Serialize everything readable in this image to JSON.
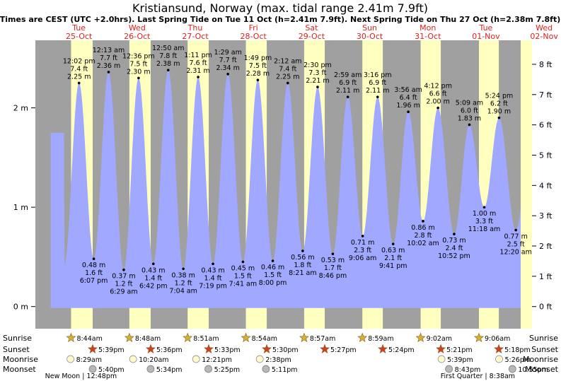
{
  "title": "Kristiansund, Norway (max. tidal range 2.41m 7.9ft)",
  "subtitle": "Times are CEST (UTC +2.0hrs). Last Spring Tide on Tue 11 Oct (h=2.41m 7.9ft). Next Spring Tide on Thu 27 Oct (h=2.38m 7.8ft)",
  "colors": {
    "night": "#a0a0a0",
    "day": "#ffffc0",
    "tide": "#a0a8ff",
    "day_label": "#e0201a",
    "sun_icon": "#d8b030",
    "sunset_icon": "#d04020",
    "moon_rise": "#fffacd",
    "moon_set": "#b8b8b8"
  },
  "chart_data": {
    "type": "area",
    "x_unit": "hours since 00:00 Tue 25-Oct (CEST)",
    "xlim": [
      -6,
      199
    ],
    "y_left": {
      "unit": "m",
      "ticks": [
        0,
        1,
        2
      ],
      "tick_labels": [
        "0 m",
        "1 m",
        "2 m"
      ]
    },
    "y_right": {
      "unit": "ft",
      "ticks": [
        0,
        1,
        2,
        3,
        4,
        5,
        6,
        7,
        8
      ],
      "tick_labels": [
        "0 ft",
        "1 ft",
        "2 ft",
        "3 ft",
        "4 ft",
        "5 ft",
        "6 ft",
        "7 ft",
        "8 ft"
      ]
    },
    "ylim_m": [
      -0.18,
      2.68
    ],
    "days": [
      {
        "dow": "Tue",
        "date": "25-Oct"
      },
      {
        "dow": "Wed",
        "date": "26-Oct"
      },
      {
        "dow": "Thu",
        "date": "27-Oct"
      },
      {
        "dow": "Fri",
        "date": "28-Oct"
      },
      {
        "dow": "Sat",
        "date": "29-Oct"
      },
      {
        "dow": "Sun",
        "date": "30-Oct"
      },
      {
        "dow": "Mon",
        "date": "31-Oct"
      },
      {
        "dow": "Tue",
        "date": "01-Nov"
      },
      {
        "dow": "Wed",
        "date": "02-Nov"
      }
    ],
    "extremes": [
      {
        "type": "high",
        "t": 12.03,
        "time": "12:02 pm",
        "ft": "7.4 ft",
        "m": "2.25 m",
        "h": 2.25
      },
      {
        "type": "low",
        "t": 18.12,
        "time": "6:07 pm",
        "ft": "1.6 ft",
        "m": "0.48 m",
        "h": 0.48
      },
      {
        "type": "high",
        "t": 24.22,
        "time": "12:13 am",
        "ft": "7.7 ft",
        "m": "2.36 m",
        "h": 2.36
      },
      {
        "type": "low",
        "t": 30.48,
        "time": "6:29 am",
        "ft": "1.2 ft",
        "m": "0.37 m",
        "h": 0.37
      },
      {
        "type": "high",
        "t": 36.6,
        "time": "12:36 pm",
        "ft": "7.5 ft",
        "m": "2.30 m",
        "h": 2.3
      },
      {
        "type": "low",
        "t": 42.7,
        "time": "6:42 pm",
        "ft": "1.4 ft",
        "m": "0.43 m",
        "h": 0.43
      },
      {
        "type": "high",
        "t": 48.83,
        "time": "12:50 am",
        "ft": "7.8 ft",
        "m": "2.38 m",
        "h": 2.38
      },
      {
        "type": "low",
        "t": 55.07,
        "time": "7:04 am",
        "ft": "1.2 ft",
        "m": "0.38 m",
        "h": 0.38
      },
      {
        "type": "high",
        "t": 61.18,
        "time": "1:11 pm",
        "ft": "7.6 ft",
        "m": "2.31 m",
        "h": 2.31
      },
      {
        "type": "low",
        "t": 67.32,
        "time": "7:19 pm",
        "ft": "1.4 ft",
        "m": "0.43 m",
        "h": 0.43
      },
      {
        "type": "high",
        "t": 73.48,
        "time": "1:29 am",
        "ft": "7.7 ft",
        "m": "2.34 m",
        "h": 2.34
      },
      {
        "type": "low",
        "t": 79.68,
        "time": "7:41 am",
        "ft": "1.5 ft",
        "m": "0.45 m",
        "h": 0.45
      },
      {
        "type": "high",
        "t": 85.82,
        "time": "1:49 pm",
        "ft": "7.5 ft",
        "m": "2.28 m",
        "h": 2.28
      },
      {
        "type": "low",
        "t": 92.0,
        "time": "8:00 pm",
        "ft": "1.5 ft",
        "m": "0.46 m",
        "h": 0.46
      },
      {
        "type": "high",
        "t": 98.2,
        "time": "2:12 am",
        "ft": "7.4 ft",
        "m": "2.25 m",
        "h": 2.25
      },
      {
        "type": "low",
        "t": 104.35,
        "time": "8:21 am",
        "ft": "1.8 ft",
        "m": "0.56 m",
        "h": 0.56
      },
      {
        "type": "high",
        "t": 110.5,
        "time": "2:30 pm",
        "ft": "7.3 ft",
        "m": "2.21 m",
        "h": 2.21
      },
      {
        "type": "low",
        "t": 116.77,
        "time": "8:46 pm",
        "ft": "1.7 ft",
        "m": "0.53 m",
        "h": 0.53
      },
      {
        "type": "high",
        "t": 122.98,
        "time": "2:59 am",
        "ft": "6.9 ft",
        "m": "2.11 m",
        "h": 2.11
      },
      {
        "type": "low",
        "t": 129.1,
        "time": "9:06 am",
        "ft": "2.3 ft",
        "m": "0.71 m",
        "h": 0.71
      },
      {
        "type": "high",
        "t": 135.27,
        "time": "3:16 pm",
        "ft": "6.9 ft",
        "m": "2.11 m",
        "h": 2.11
      },
      {
        "type": "low",
        "t": 141.68,
        "time": "9:41 pm",
        "ft": "2.1 ft",
        "m": "0.63 m",
        "h": 0.63
      },
      {
        "type": "high",
        "t": 147.93,
        "time": "3:56 am",
        "ft": "6.4 ft",
        "m": "1.96 m",
        "h": 1.96
      },
      {
        "type": "low",
        "t": 154.03,
        "time": "10:02 am",
        "ft": "2.8 ft",
        "m": "0.86 m",
        "h": 0.86
      },
      {
        "type": "high",
        "t": 160.2,
        "time": "4:12 pm",
        "ft": "6.6 ft",
        "m": "2.00 m",
        "h": 2.0
      },
      {
        "type": "low",
        "t": 166.87,
        "time": "10:52 pm",
        "ft": "2.4 ft",
        "m": "0.73 m",
        "h": 0.73
      },
      {
        "type": "high",
        "t": 173.15,
        "time": "5:09 am",
        "ft": "6.0 ft",
        "m": "1.83 m",
        "h": 1.83
      },
      {
        "type": "low",
        "t": 179.3,
        "time": "11:18 am",
        "ft": "3.3 ft",
        "m": "1.00 m",
        "h": 1.0
      },
      {
        "type": "high",
        "t": 185.4,
        "time": "5:24 pm",
        "ft": "6.2 ft",
        "m": "1.90 m",
        "h": 1.9
      },
      {
        "type": "low",
        "t": 192.33,
        "time": "12:20 am",
        "ft": "2.5 ft",
        "m": "0.77 m",
        "h": 0.77
      }
    ],
    "daylight": [
      {
        "rise_t": 8.73,
        "set_t": 17.65
      },
      {
        "rise_t": 32.8,
        "set_t": 41.6
      },
      {
        "rise_t": 56.85,
        "set_t": 65.55
      },
      {
        "rise_t": 80.9,
        "set_t": 89.5
      },
      {
        "rise_t": 104.95,
        "set_t": 113.45
      },
      {
        "rise_t": 128.98,
        "set_t": 137.4
      },
      {
        "rise_t": 153.03,
        "set_t": 161.35
      },
      {
        "rise_t": 177.1,
        "set_t": 185.3
      }
    ],
    "rows": {
      "sunrise": "Sunrise",
      "sunset": "Sunset",
      "moonrise": "Moonrise",
      "moonset": "Moonset"
    },
    "sunrise": [
      {
        "t": 8.73,
        "time": "8:44am"
      },
      {
        "t": 32.8,
        "time": "8:48am"
      },
      {
        "t": 56.85,
        "time": "8:51am"
      },
      {
        "t": 80.9,
        "time": "8:54am"
      },
      {
        "t": 104.95,
        "time": "8:57am"
      },
      {
        "t": 128.98,
        "time": "8:59am"
      },
      {
        "t": 153.03,
        "time": "9:02am"
      },
      {
        "t": 177.1,
        "time": "9:06am"
      }
    ],
    "sunset": [
      {
        "t": 17.65,
        "time": "5:39pm"
      },
      {
        "t": 41.6,
        "time": "5:36pm"
      },
      {
        "t": 65.55,
        "time": "5:33pm"
      },
      {
        "t": 89.5,
        "time": "5:30pm"
      },
      {
        "t": 113.45,
        "time": "5:27pm"
      },
      {
        "t": 137.4,
        "time": "5:24pm"
      },
      {
        "t": 161.35,
        "time": "5:21pm"
      },
      {
        "t": 185.3,
        "time": "5:18pm"
      }
    ],
    "moonrise": [
      {
        "t": 8.48,
        "time": "8:29am"
      },
      {
        "t": 34.33,
        "time": "10:20am"
      },
      {
        "t": 60.35,
        "time": "12:21pm"
      },
      {
        "t": 86.63,
        "time": "2:38pm"
      },
      {
        "t": 161.65,
        "time": "5:39pm"
      },
      {
        "t": 185.43,
        "time": "5:26pm"
      }
    ],
    "moonset": [
      {
        "t": 17.67,
        "time": "5:40pm"
      },
      {
        "t": 41.57,
        "time": "5:34pm"
      },
      {
        "t": 65.42,
        "time": "5:25pm"
      },
      {
        "t": 89.18,
        "time": "5:11pm"
      },
      {
        "t": 164.72,
        "time": "8:43pm"
      },
      {
        "t": 190.92,
        "time": "10:55pm"
      }
    ],
    "moon_phases": [
      {
        "t": 12.8,
        "label": "New Moon | 12:48pm"
      },
      {
        "t": 176.63,
        "label": "First Quarter | 8:38am"
      }
    ]
  }
}
